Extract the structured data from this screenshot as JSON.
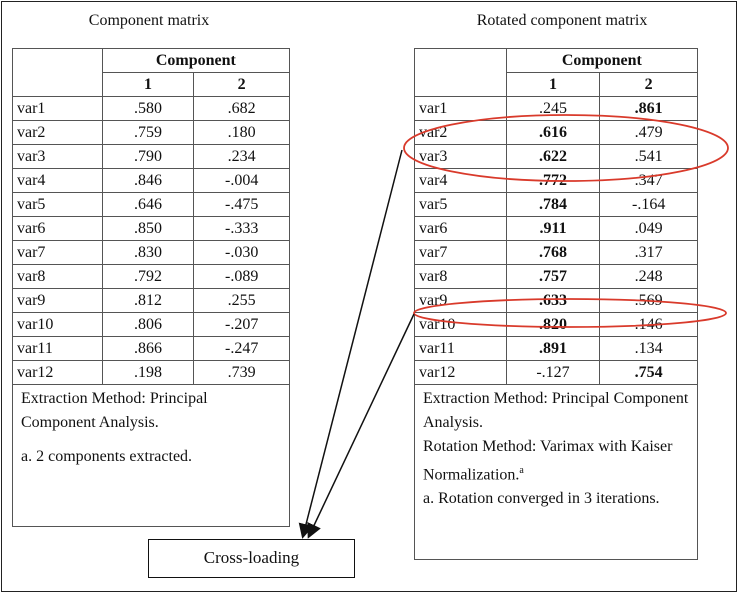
{
  "component_matrix": {
    "title": "Component matrix",
    "component_header": "Component",
    "columns": [
      "1",
      "2"
    ],
    "rows": [
      {
        "var": "var1",
        "c1": ".580",
        "c2": ".682"
      },
      {
        "var": "var2",
        "c1": ".759",
        "c2": ".180"
      },
      {
        "var": "var3",
        "c1": ".790",
        "c2": ".234"
      },
      {
        "var": "var4",
        "c1": ".846",
        "c2": "-.004"
      },
      {
        "var": "var5",
        "c1": ".646",
        "c2": "-.475"
      },
      {
        "var": "var6",
        "c1": ".850",
        "c2": "-.333"
      },
      {
        "var": "var7",
        "c1": ".830",
        "c2": "-.030"
      },
      {
        "var": "var8",
        "c1": ".792",
        "c2": "-.089"
      },
      {
        "var": "var9",
        "c1": ".812",
        "c2": ".255"
      },
      {
        "var": "var10",
        "c1": ".806",
        "c2": "-.207"
      },
      {
        "var": "var11",
        "c1": ".866",
        "c2": "-.247"
      },
      {
        "var": "var12",
        "c1": ".198",
        "c2": ".739"
      }
    ],
    "notes": [
      "Extraction Method: Principal Component Analysis.",
      "a. 2 components extracted."
    ]
  },
  "rotated_matrix": {
    "title": "Rotated component matrix",
    "component_header": "Component",
    "columns": [
      "1",
      "2"
    ],
    "rows": [
      {
        "var": "var1",
        "c1": ".245",
        "c2": ".861",
        "bold": [
          false,
          true
        ]
      },
      {
        "var": "var2",
        "c1": ".616",
        "c2": ".479",
        "bold": [
          true,
          false
        ]
      },
      {
        "var": "var3",
        "c1": ".622",
        "c2": ".541",
        "bold": [
          true,
          false
        ]
      },
      {
        "var": "var4",
        "c1": ".772",
        "c2": ".347",
        "bold": [
          true,
          false
        ]
      },
      {
        "var": "var5",
        "c1": ".784",
        "c2": "-.164",
        "bold": [
          true,
          false
        ]
      },
      {
        "var": "var6",
        "c1": ".911",
        "c2": ".049",
        "bold": [
          true,
          false
        ]
      },
      {
        "var": "var7",
        "c1": ".768",
        "c2": ".317",
        "bold": [
          true,
          false
        ]
      },
      {
        "var": "var8",
        "c1": ".757",
        "c2": ".248",
        "bold": [
          true,
          false
        ]
      },
      {
        "var": "var9",
        "c1": ".633",
        "c2": ".569",
        "bold": [
          true,
          false
        ]
      },
      {
        "var": "var10",
        "c1": ".820",
        "c2": ".146",
        "bold": [
          true,
          false
        ]
      },
      {
        "var": "var11",
        "c1": ".891",
        "c2": ".134",
        "bold": [
          true,
          false
        ]
      },
      {
        "var": "var12",
        "c1": "-.127",
        "c2": ".754",
        "bold": [
          false,
          true
        ]
      }
    ],
    "notes": [
      "Extraction Method: Principal Component Analysis.",
      "Rotation Method: Varimax with Kaiser Normalization.",
      "a",
      "a. Rotation converged in 3 iterations."
    ],
    "highlighted_rows": [
      "var2",
      "var3",
      "var9"
    ]
  },
  "callout": {
    "label": "Cross-loading"
  },
  "colors": {
    "highlight_ellipse": "#d93a2b",
    "arrow": "#111111"
  }
}
